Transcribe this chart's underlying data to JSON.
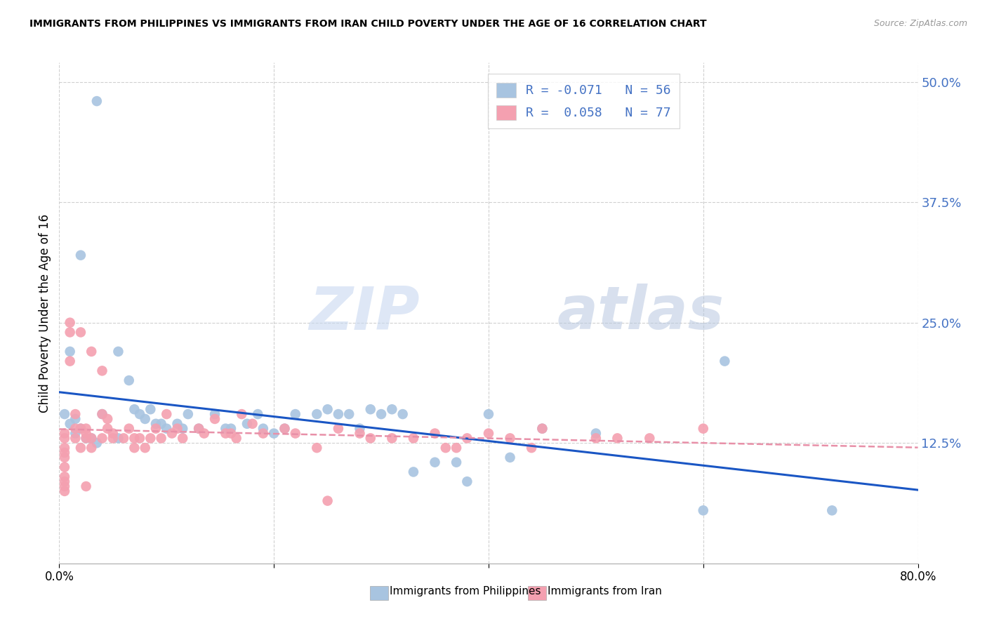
{
  "title": "IMMIGRANTS FROM PHILIPPINES VS IMMIGRANTS FROM IRAN CHILD POVERTY UNDER THE AGE OF 16 CORRELATION CHART",
  "source": "Source: ZipAtlas.com",
  "ylabel": "Child Poverty Under the Age of 16",
  "yticks": [
    "12.5%",
    "25.0%",
    "37.5%",
    "50.0%"
  ],
  "ytick_vals": [
    0.125,
    0.25,
    0.375,
    0.5
  ],
  "xlim": [
    0.0,
    0.8
  ],
  "ylim": [
    0.0,
    0.52
  ],
  "legend_label1": "Immigrants from Philippines",
  "legend_label2": "Immigrants from Iran",
  "color_philippines": "#a8c4e0",
  "color_iran": "#f4a0b0",
  "line_color_philippines": "#1a56c4",
  "line_color_iran": "#e890a8",
  "watermark_zip": "ZIP",
  "watermark_atlas": "atlas",
  "background_color": "#ffffff",
  "philippines_x": [
    0.035,
    0.02,
    0.01,
    0.005,
    0.015,
    0.01,
    0.02,
    0.015,
    0.025,
    0.03,
    0.055,
    0.035,
    0.04,
    0.055,
    0.065,
    0.07,
    0.075,
    0.08,
    0.09,
    0.085,
    0.095,
    0.1,
    0.11,
    0.12,
    0.115,
    0.13,
    0.145,
    0.155,
    0.16,
    0.175,
    0.185,
    0.19,
    0.2,
    0.21,
    0.22,
    0.24,
    0.25,
    0.26,
    0.27,
    0.28,
    0.29,
    0.3,
    0.31,
    0.32,
    0.33,
    0.35,
    0.37,
    0.38,
    0.4,
    0.42,
    0.45,
    0.5,
    0.6,
    0.62,
    0.72
  ],
  "philippines_y": [
    0.48,
    0.32,
    0.22,
    0.155,
    0.15,
    0.145,
    0.14,
    0.135,
    0.13,
    0.13,
    0.13,
    0.125,
    0.155,
    0.22,
    0.19,
    0.16,
    0.155,
    0.15,
    0.145,
    0.16,
    0.145,
    0.14,
    0.145,
    0.155,
    0.14,
    0.14,
    0.155,
    0.14,
    0.14,
    0.145,
    0.155,
    0.14,
    0.135,
    0.14,
    0.155,
    0.155,
    0.16,
    0.155,
    0.155,
    0.14,
    0.16,
    0.155,
    0.16,
    0.155,
    0.095,
    0.105,
    0.105,
    0.085,
    0.155,
    0.11,
    0.14,
    0.135,
    0.055,
    0.21,
    0.055
  ],
  "iran_x": [
    0.005,
    0.005,
    0.005,
    0.005,
    0.005,
    0.005,
    0.005,
    0.005,
    0.005,
    0.005,
    0.01,
    0.01,
    0.01,
    0.015,
    0.015,
    0.015,
    0.02,
    0.02,
    0.02,
    0.025,
    0.025,
    0.025,
    0.025,
    0.03,
    0.03,
    0.03,
    0.04,
    0.04,
    0.04,
    0.045,
    0.045,
    0.05,
    0.05,
    0.06,
    0.065,
    0.07,
    0.07,
    0.075,
    0.08,
    0.085,
    0.09,
    0.095,
    0.1,
    0.105,
    0.11,
    0.115,
    0.13,
    0.135,
    0.145,
    0.155,
    0.16,
    0.165,
    0.17,
    0.18,
    0.19,
    0.21,
    0.22,
    0.24,
    0.25,
    0.26,
    0.28,
    0.29,
    0.31,
    0.33,
    0.35,
    0.36,
    0.37,
    0.38,
    0.4,
    0.42,
    0.44,
    0.45,
    0.5,
    0.52,
    0.55,
    0.6
  ],
  "iran_y": [
    0.135,
    0.13,
    0.12,
    0.115,
    0.11,
    0.1,
    0.09,
    0.085,
    0.08,
    0.075,
    0.25,
    0.24,
    0.21,
    0.155,
    0.14,
    0.13,
    0.24,
    0.14,
    0.12,
    0.14,
    0.135,
    0.13,
    0.08,
    0.22,
    0.13,
    0.12,
    0.2,
    0.155,
    0.13,
    0.15,
    0.14,
    0.135,
    0.13,
    0.13,
    0.14,
    0.13,
    0.12,
    0.13,
    0.12,
    0.13,
    0.14,
    0.13,
    0.155,
    0.135,
    0.14,
    0.13,
    0.14,
    0.135,
    0.15,
    0.135,
    0.135,
    0.13,
    0.155,
    0.145,
    0.135,
    0.14,
    0.135,
    0.12,
    0.065,
    0.14,
    0.135,
    0.13,
    0.13,
    0.13,
    0.135,
    0.12,
    0.12,
    0.13,
    0.135,
    0.13,
    0.12,
    0.14,
    0.13,
    0.13,
    0.13,
    0.14
  ]
}
